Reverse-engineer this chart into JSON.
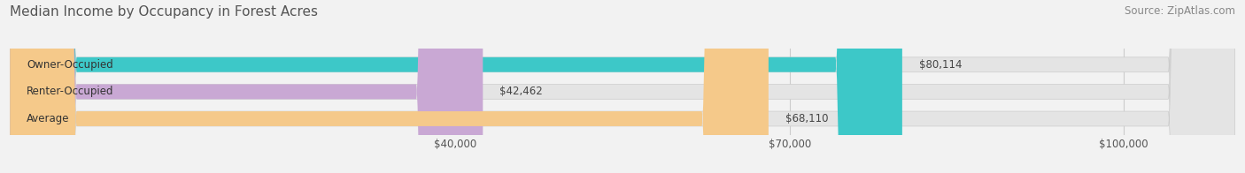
{
  "title": "Median Income by Occupancy in Forest Acres",
  "source": "Source: ZipAtlas.com",
  "categories": [
    "Owner-Occupied",
    "Renter-Occupied",
    "Average"
  ],
  "values": [
    80114,
    42462,
    68110
  ],
  "bar_colors": [
    "#3dc8c8",
    "#c9a8d4",
    "#f5c98a"
  ],
  "value_labels": [
    "$80,114",
    "$42,462",
    "$68,110"
  ],
  "xlim": [
    0,
    110000
  ],
  "xticks": [
    40000,
    70000,
    100000
  ],
  "xtick_labels": [
    "$40,000",
    "$70,000",
    "$100,000"
  ],
  "bg_color": "#f2f2f2",
  "bar_bg_color": "#e4e4e4",
  "title_fontsize": 11,
  "source_fontsize": 8.5,
  "label_fontsize": 8.5,
  "value_fontsize": 8.5,
  "bar_height": 0.55,
  "fig_width": 14.06,
  "fig_height": 1.96
}
